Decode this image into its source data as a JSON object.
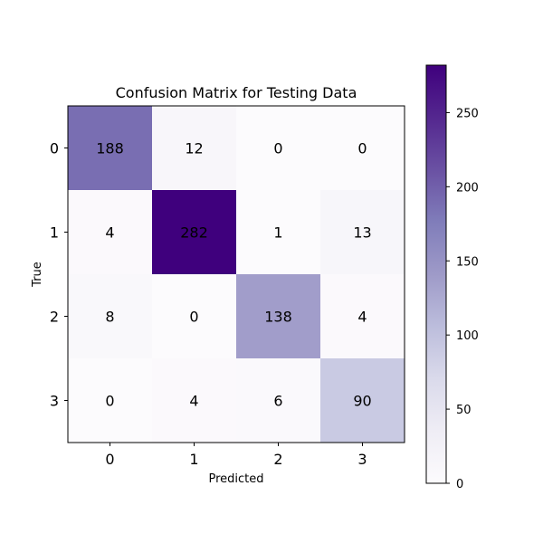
{
  "chart_data": {
    "type": "heatmap",
    "title": "Confusion Matrix for Testing Data",
    "xlabel": "Predicted",
    "ylabel": "True",
    "x_categories": [
      "0",
      "1",
      "2",
      "3"
    ],
    "y_categories": [
      "0",
      "1",
      "2",
      "3"
    ],
    "matrix": [
      [
        188,
        12,
        0,
        0
      ],
      [
        4,
        282,
        1,
        13
      ],
      [
        8,
        0,
        138,
        4
      ],
      [
        0,
        4,
        6,
        90
      ]
    ],
    "colormap": "Purples",
    "colorbar": {
      "ticks": [
        0,
        50,
        100,
        150,
        200,
        250
      ],
      "tick_labels": [
        "0",
        "50",
        "100",
        "150",
        "200",
        "250"
      ],
      "range": [
        0,
        282
      ]
    },
    "colors": {
      "low": "#fcfbfd",
      "high": "#3f007d"
    }
  }
}
